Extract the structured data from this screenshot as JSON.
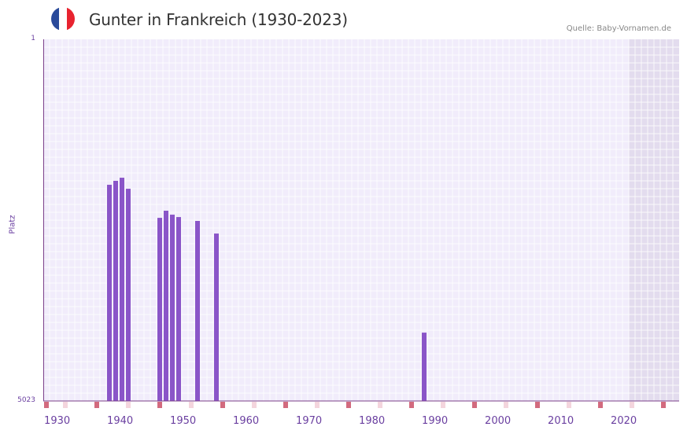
{
  "header": {
    "title": "Gunter in Frankreich (1930-2023)",
    "source": "Quelle: Baby-Vornamen.de",
    "flag": {
      "country": "France",
      "colors": [
        "#2a4a9a",
        "#ffffff",
        "#e8232f"
      ]
    }
  },
  "colors": {
    "bar": "#8a55c8",
    "axis": "#7b3f8a",
    "grid_bg": "#f1ecfb",
    "grid_line": "#ffffff",
    "future_shade": "#e3dcee",
    "decade_marker": "#d26a7e",
    "mid_marker": "#f4d5dd",
    "label": "#6a3fa0"
  },
  "chart_data": {
    "type": "bar",
    "title": "Gunter in Frankreich (1930-2023)",
    "xlabel": "",
    "ylabel": "Platz",
    "ylim": [
      5023,
      1
    ],
    "y_inverted": true,
    "x_range": [
      1930,
      2030
    ],
    "x_ticks": [
      1930,
      1940,
      1950,
      1960,
      1970,
      1980,
      1990,
      2000,
      2010,
      2020
    ],
    "y_ticks": [
      1,
      5023
    ],
    "grid": true,
    "legend": null,
    "shaded_region": [
      2023,
      2030
    ],
    "x": [
      1940,
      1941,
      1942,
      1943,
      1948,
      1949,
      1950,
      1951,
      1954,
      1957,
      1990
    ],
    "values": [
      2021,
      1966,
      1923,
      2076,
      2480,
      2381,
      2436,
      2469,
      2523,
      2698,
      4074
    ]
  },
  "axis": {
    "y_label": "Platz",
    "y_top": "1",
    "y_bottom": "5023",
    "x_labels": [
      "1930",
      "1940",
      "1950",
      "1960",
      "1970",
      "1980",
      "1990",
      "2000",
      "2010",
      "2020"
    ]
  }
}
